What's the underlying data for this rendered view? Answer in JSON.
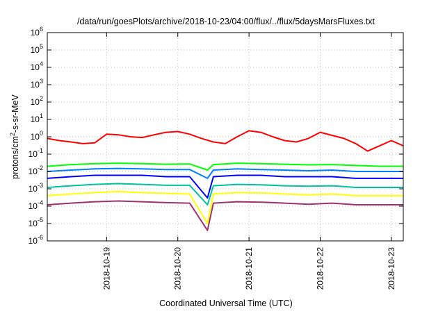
{
  "chart_data": {
    "type": "line",
    "title": "/data/run/goesPlots/archive/2018-10-23/04:00/flux/../flux/5daysMarsFluxes.txt",
    "xlabel": "Coordinated Universal Time (UTC)",
    "ylabel_base": "protons/cm",
    "ylabel_exp": "2",
    "ylabel_rest": "-s-sr-MeV",
    "yscale": "log",
    "grid": true,
    "legend": "none",
    "xlim": [
      "2018-10-18T04:00",
      "2018-10-23T04:00"
    ],
    "ylim": [
      1e-06,
      1000000.0
    ],
    "x_ticks": [
      {
        "label": "2018-10-19",
        "x": "2018-10-19T00:00"
      },
      {
        "label": "2018-10-20",
        "x": "2018-10-20T00:00"
      },
      {
        "label": "2018-10-21",
        "x": "2018-10-21T00:00"
      },
      {
        "label": "2018-10-22",
        "x": "2018-10-22T00:00"
      },
      {
        "label": "2018-10-23",
        "x": "2018-10-23T00:00"
      }
    ],
    "y_ticks": [
      {
        "base": "10",
        "exp": "6",
        "value": 1000000.0
      },
      {
        "base": "10",
        "exp": "5",
        "value": 100000.0
      },
      {
        "base": "10",
        "exp": "4",
        "value": 10000.0
      },
      {
        "base": "10",
        "exp": "3",
        "value": 1000.0
      },
      {
        "base": "10",
        "exp": "2",
        "value": 100.0
      },
      {
        "base": "10",
        "exp": "1",
        "value": 10.0
      },
      {
        "base": "10",
        "exp": "0",
        "value": 1.0
      },
      {
        "base": "10",
        "exp": "-1",
        "value": 0.1
      },
      {
        "base": "10",
        "exp": "-2",
        "value": 0.01
      },
      {
        "base": "10",
        "exp": "-3",
        "value": 0.001
      },
      {
        "base": "10",
        "exp": "-4",
        "value": 0.0001
      },
      {
        "base": "10",
        "exp": "-5",
        "value": 1e-05
      },
      {
        "base": "10",
        "exp": "-6",
        "value": 1e-06
      }
    ],
    "series": [
      {
        "color": "#ff0000",
        "x": [
          "2018-10-18T04:00",
          "2018-10-18T08:00",
          "2018-10-18T12:00",
          "2018-10-18T16:00",
          "2018-10-18T20:00",
          "2018-10-19T00:00",
          "2018-10-19T04:00",
          "2018-10-19T08:00",
          "2018-10-19T12:00",
          "2018-10-19T16:00",
          "2018-10-19T20:00",
          "2018-10-20T00:00",
          "2018-10-20T04:00",
          "2018-10-20T08:00",
          "2018-10-20T12:00",
          "2018-10-20T16:00",
          "2018-10-20T20:00",
          "2018-10-21T00:00",
          "2018-10-21T04:00",
          "2018-10-21T08:00",
          "2018-10-21T12:00",
          "2018-10-21T16:00",
          "2018-10-21T20:00",
          "2018-10-22T00:00",
          "2018-10-22T04:00",
          "2018-10-22T08:00",
          "2018-10-22T12:00",
          "2018-10-22T16:00",
          "2018-10-22T20:00",
          "2018-10-23T00:00",
          "2018-10-23T04:00"
        ],
        "values": [
          0.8,
          0.6,
          0.5,
          0.4,
          0.45,
          1.4,
          1.3,
          1.0,
          0.9,
          1.3,
          1.8,
          2.0,
          1.4,
          0.8,
          0.5,
          0.4,
          1.0,
          2.2,
          1.8,
          1.0,
          0.6,
          0.5,
          0.8,
          1.8,
          1.2,
          0.8,
          0.4,
          0.15,
          0.3,
          0.6,
          0.3
        ]
      },
      {
        "color": "#00ff00",
        "x": [
          "2018-10-18T04:00",
          "2018-10-18T12:00",
          "2018-10-18T20:00",
          "2018-10-19T04:00",
          "2018-10-19T12:00",
          "2018-10-19T20:00",
          "2018-10-20T04:00",
          "2018-10-20T10:00",
          "2018-10-20T12:00",
          "2018-10-20T20:00",
          "2018-10-21T04:00",
          "2018-10-21T12:00",
          "2018-10-21T20:00",
          "2018-10-22T04:00",
          "2018-10-22T12:00",
          "2018-10-22T20:00",
          "2018-10-23T04:00"
        ],
        "values": [
          0.02,
          0.025,
          0.028,
          0.03,
          0.028,
          0.026,
          0.027,
          0.012,
          0.025,
          0.03,
          0.028,
          0.026,
          0.024,
          0.025,
          0.022,
          0.02,
          0.02
        ]
      },
      {
        "color": "#0080ff",
        "x": [
          "2018-10-18T04:00",
          "2018-10-18T12:00",
          "2018-10-18T20:00",
          "2018-10-19T04:00",
          "2018-10-19T12:00",
          "2018-10-19T20:00",
          "2018-10-20T04:00",
          "2018-10-20T10:00",
          "2018-10-20T12:00",
          "2018-10-20T20:00",
          "2018-10-21T04:00",
          "2018-10-21T12:00",
          "2018-10-21T20:00",
          "2018-10-22T04:00",
          "2018-10-22T12:00",
          "2018-10-22T20:00",
          "2018-10-23T04:00"
        ],
        "values": [
          0.01,
          0.012,
          0.014,
          0.015,
          0.014,
          0.013,
          0.013,
          0.004,
          0.012,
          0.014,
          0.013,
          0.012,
          0.011,
          0.012,
          0.01,
          0.01,
          0.01
        ]
      },
      {
        "color": "#0000ff",
        "x": [
          "2018-10-18T04:00",
          "2018-10-18T12:00",
          "2018-10-18T20:00",
          "2018-10-19T04:00",
          "2018-10-19T12:00",
          "2018-10-19T20:00",
          "2018-10-20T04:00",
          "2018-10-20T10:00",
          "2018-10-20T12:00",
          "2018-10-20T20:00",
          "2018-10-21T04:00",
          "2018-10-21T12:00",
          "2018-10-21T20:00",
          "2018-10-22T04:00",
          "2018-10-22T12:00",
          "2018-10-22T20:00",
          "2018-10-23T04:00"
        ],
        "values": [
          0.004,
          0.005,
          0.006,
          0.006,
          0.006,
          0.005,
          0.005,
          0.0003,
          0.005,
          0.006,
          0.006,
          0.005,
          0.005,
          0.005,
          0.004,
          0.004,
          0.004
        ]
      },
      {
        "color": "#00c0a0",
        "x": [
          "2018-10-18T04:00",
          "2018-10-18T12:00",
          "2018-10-18T20:00",
          "2018-10-19T04:00",
          "2018-10-19T12:00",
          "2018-10-19T20:00",
          "2018-10-20T04:00",
          "2018-10-20T10:00",
          "2018-10-20T12:00",
          "2018-10-20T20:00",
          "2018-10-21T04:00",
          "2018-10-21T12:00",
          "2018-10-21T20:00",
          "2018-10-22T04:00",
          "2018-10-22T12:00",
          "2018-10-22T20:00",
          "2018-10-23T04:00"
        ],
        "values": [
          0.0012,
          0.0015,
          0.0018,
          0.002,
          0.0018,
          0.0016,
          0.0016,
          0.00012,
          0.0015,
          0.0018,
          0.0017,
          0.0015,
          0.0014,
          0.0015,
          0.0012,
          0.0012,
          0.0012
        ]
      },
      {
        "color": "#ffff00",
        "x": [
          "2018-10-18T04:00",
          "2018-10-18T12:00",
          "2018-10-18T20:00",
          "2018-10-19T04:00",
          "2018-10-19T12:00",
          "2018-10-19T20:00",
          "2018-10-20T04:00",
          "2018-10-20T10:00",
          "2018-10-20T12:00",
          "2018-10-20T20:00",
          "2018-10-21T04:00",
          "2018-10-21T12:00",
          "2018-10-21T20:00",
          "2018-10-22T04:00",
          "2018-10-22T12:00",
          "2018-10-22T20:00",
          "2018-10-23T04:00"
        ],
        "values": [
          0.0004,
          0.0005,
          0.0006,
          0.0007,
          0.0006,
          0.00055,
          0.0005,
          1e-05,
          0.0005,
          0.0006,
          0.00058,
          0.0005,
          0.00045,
          0.0005,
          0.0004,
          0.0004,
          0.0004
        ]
      },
      {
        "color": "#a03070",
        "x": [
          "2018-10-18T04:00",
          "2018-10-18T12:00",
          "2018-10-18T20:00",
          "2018-10-19T04:00",
          "2018-10-19T12:00",
          "2018-10-19T20:00",
          "2018-10-20T04:00",
          "2018-10-20T10:00",
          "2018-10-20T12:00",
          "2018-10-20T20:00",
          "2018-10-21T04:00",
          "2018-10-21T12:00",
          "2018-10-21T20:00",
          "2018-10-22T04:00",
          "2018-10-22T12:00",
          "2018-10-22T20:00",
          "2018-10-23T04:00"
        ],
        "values": [
          0.00012,
          0.00015,
          0.00018,
          0.0002,
          0.00018,
          0.00016,
          0.00015,
          4e-06,
          0.00015,
          0.00018,
          0.00017,
          0.00015,
          0.00013,
          0.00015,
          0.00012,
          0.00012,
          0.00012
        ]
      }
    ]
  }
}
